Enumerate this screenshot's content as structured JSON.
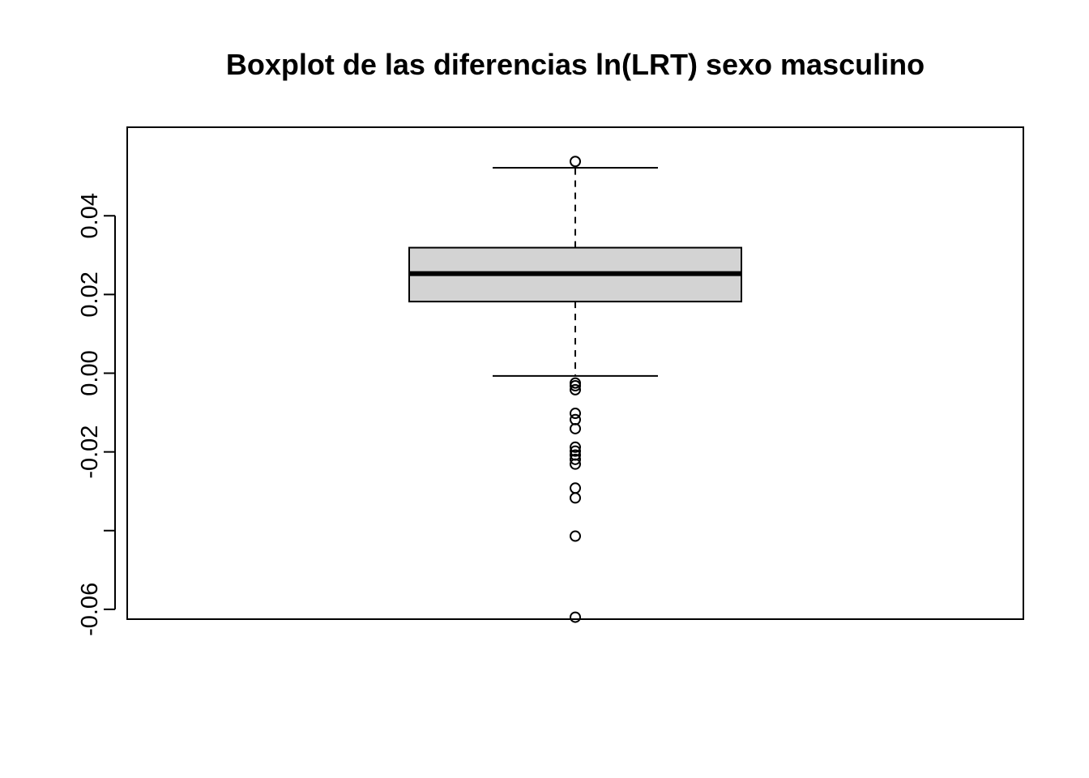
{
  "chart_data": {
    "type": "boxplot",
    "title": "Boxplot de las diferencias ln(LRT) sexo masculino",
    "xlabel": "",
    "ylabel": "",
    "ylim": [
      -0.0625,
      0.0625
    ],
    "y_ticks": [
      -0.06,
      -0.04,
      -0.02,
      0.0,
      0.02,
      0.04
    ],
    "y_tick_labels": [
      "-0.06",
      "",
      "-0.02",
      "0.00",
      "0.02",
      "0.04"
    ],
    "grid": false,
    "box": {
      "whisker_low": -0.0007,
      "q1": 0.0182,
      "median": 0.0253,
      "q3": 0.0319,
      "whisker_high": 0.0522
    },
    "outliers": [
      0.0538,
      -0.0025,
      -0.0032,
      -0.0042,
      -0.0102,
      -0.0118,
      -0.0141,
      -0.0188,
      -0.0198,
      -0.0208,
      -0.0219,
      -0.0231,
      -0.0292,
      -0.0317,
      -0.0414,
      -0.062
    ],
    "colors": {
      "box_fill": "#d3d3d3",
      "stroke": "#000000"
    }
  }
}
